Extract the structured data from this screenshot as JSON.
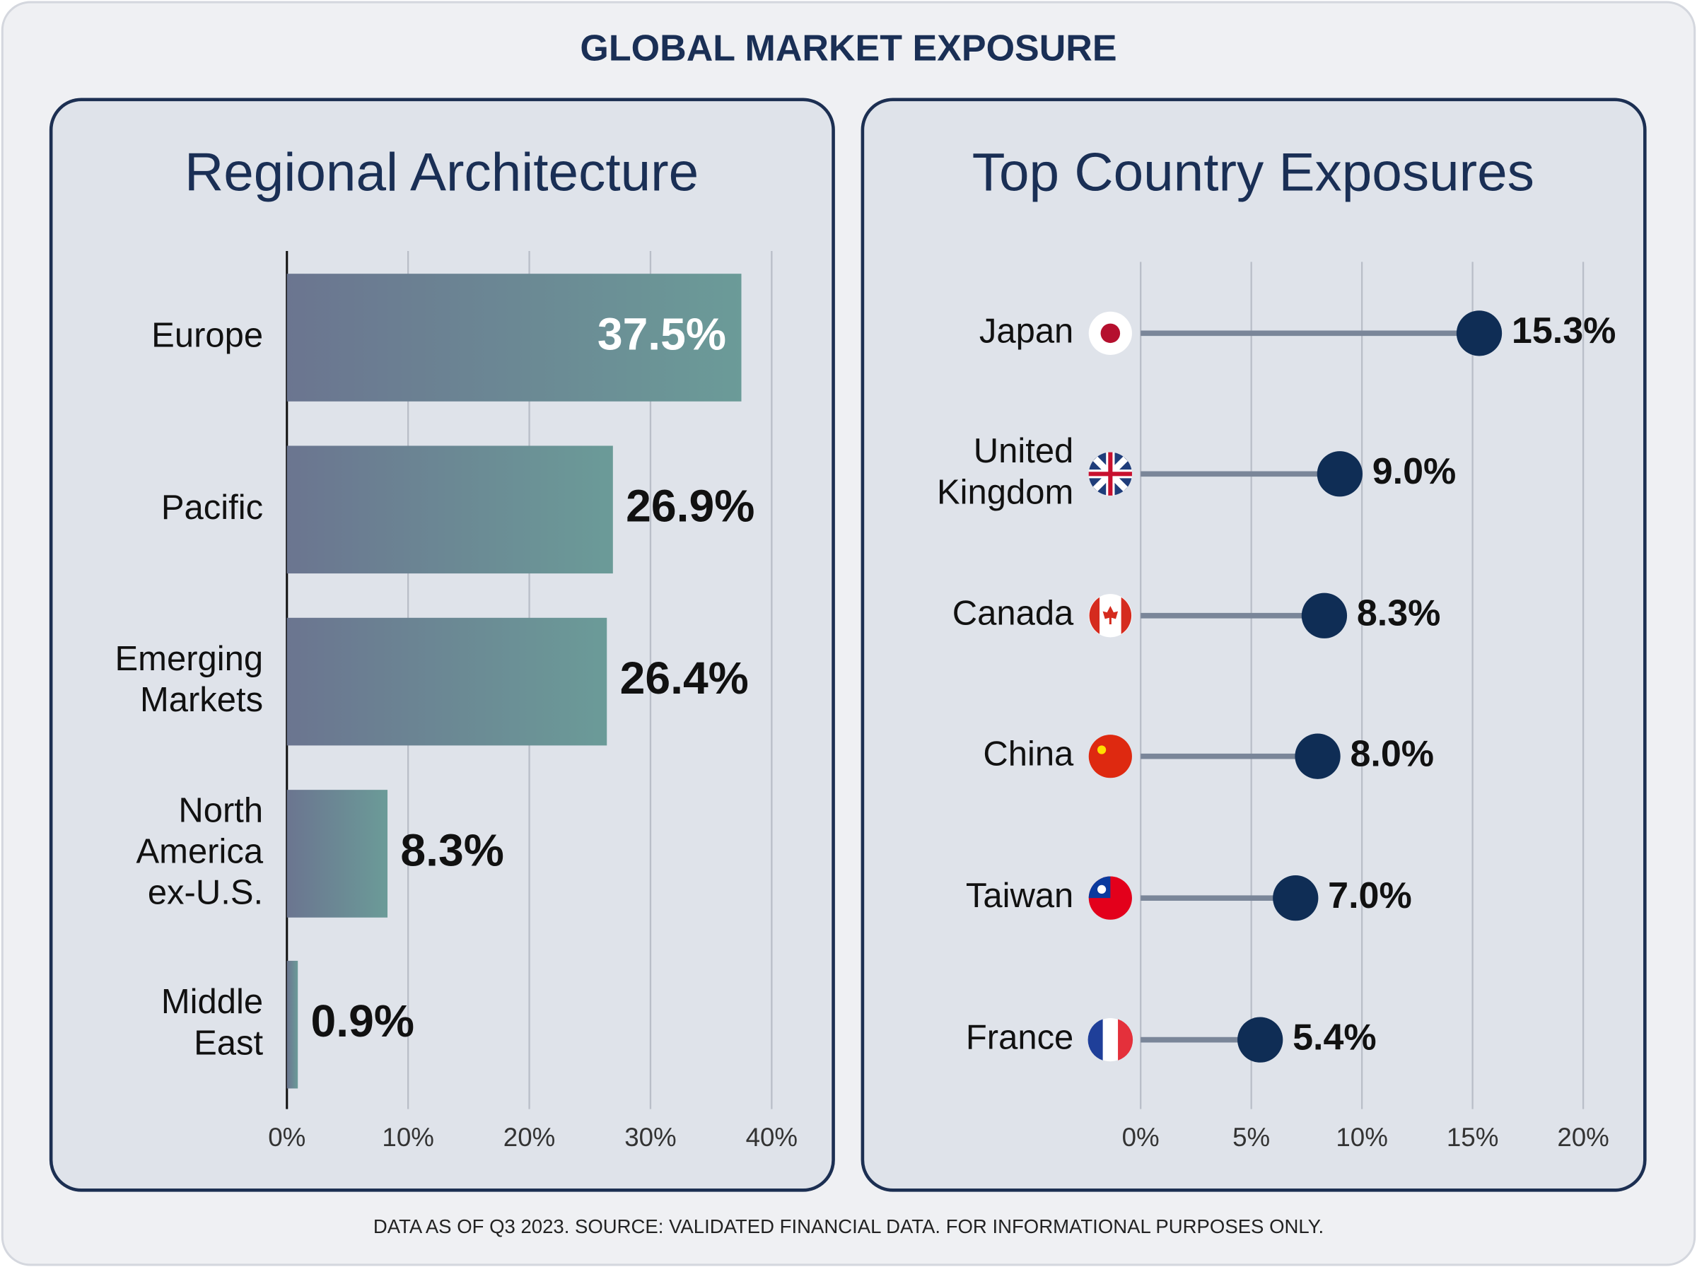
{
  "title": "GLOBAL MARKET EXPOSURE",
  "footer": "DATA AS OF Q3 2023. SOURCE: VALIDATED FINANCIAL DATA. FOR INFORMATIONAL PURPOSES ONLY.",
  "chart_data": [
    {
      "type": "bar",
      "title": "Regional Architecture",
      "categories": [
        "Europe",
        "Pacific",
        "Emerging Markets",
        "North America ex-U.S.",
        "Middle East"
      ],
      "values": [
        37.5,
        26.9,
        26.4,
        8.3,
        0.9
      ],
      "value_labels": [
        "37.5%",
        "26.9%",
        "26.4%",
        "8.3%",
        "0.9%"
      ],
      "xlim": [
        0,
        40
      ],
      "xticks": [
        {
          "value": 0,
          "label": "0%"
        },
        {
          "value": 10,
          "label": "10%"
        },
        {
          "value": 20,
          "label": "20%"
        },
        {
          "value": 30,
          "label": "30%"
        },
        {
          "value": 40,
          "label": "40%"
        }
      ],
      "grid": true
    },
    {
      "type": "lollipop",
      "title": "Top Country Exposures",
      "categories": [
        "Japan",
        "United Kingdom",
        "Canada",
        "China",
        "Taiwan",
        "France"
      ],
      "values": [
        15.3,
        9.0,
        8.3,
        8.0,
        7.0,
        5.4
      ],
      "value_labels": [
        "15.3%",
        "9.0%",
        "8.3%",
        "8.0%",
        "7.0%",
        "5.4%"
      ],
      "color": "#0f2d55",
      "xlim": [
        0,
        20
      ],
      "xticks": [
        {
          "value": 0,
          "label": "0%"
        },
        {
          "value": 5,
          "label": "5%"
        },
        {
          "value": 10,
          "label": "10%"
        },
        {
          "value": 15,
          "label": "15%"
        },
        {
          "value": 20,
          "label": "20%"
        }
      ],
      "grid": true
    }
  ]
}
